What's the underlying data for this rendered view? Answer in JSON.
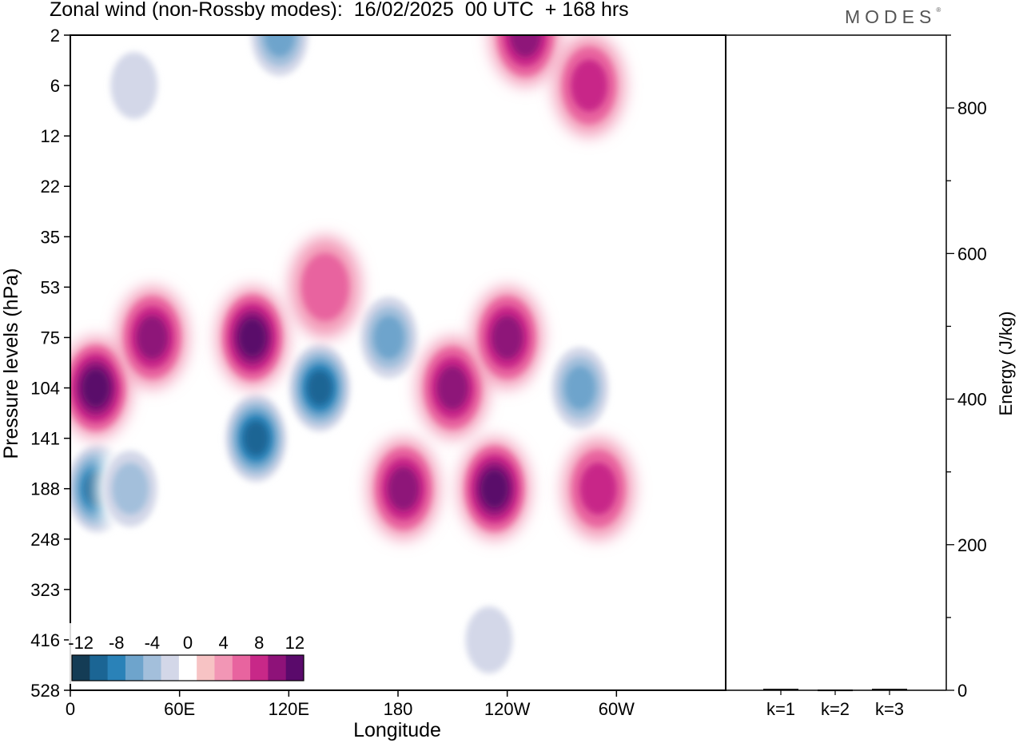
{
  "title": "Zonal wind (non-Rossby modes):  16/02/2025  00 UTC  + 168 hrs",
  "logo": "MODES",
  "chart_data": [
    {
      "type": "heatmap",
      "title": "Zonal wind (non-Rossby modes):  16/02/2025  00 UTC  + 168 hrs",
      "xlabel": "Longitude",
      "ylabel": "Pressure levels (hPa)",
      "x_ticks": [
        "0",
        "60E",
        "120E",
        "180",
        "120W",
        "60W"
      ],
      "x_tick_values": [
        0,
        60,
        120,
        180,
        240,
        300
      ],
      "xlim": [
        0,
        360
      ],
      "y_ticks": [
        "2",
        "6",
        "12",
        "22",
        "35",
        "53",
        "75",
        "104",
        "141",
        "188",
        "248",
        "323",
        "416",
        "528"
      ],
      "colorbar": {
        "labels": [
          "-12",
          "-8",
          "-4",
          "0",
          "4",
          "8",
          "12"
        ],
        "bounds": [
          -16,
          -14,
          -12,
          -10,
          -8,
          -6,
          -4,
          -2,
          2,
          4,
          6,
          8,
          10,
          12,
          14
        ],
        "colors": [
          "#143c55",
          "#1b6594",
          "#2a82b8",
          "#6ea4cc",
          "#a3bfdb",
          "#d3d7e8",
          "#ffffff",
          "#f7c3c4",
          "#f296b5",
          "#e8649f",
          "#c82888",
          "#8e1279",
          "#5a0a6b"
        ]
      },
      "features": [
        {
          "lon": 15,
          "level": "188",
          "value": -12
        },
        {
          "lon": 33,
          "level": "188",
          "value": -6
        },
        {
          "lon": 14,
          "level": "104",
          "value": 10
        },
        {
          "lon": 45,
          "level": "75",
          "value": 8
        },
        {
          "lon": 102,
          "level": "141",
          "value": -12
        },
        {
          "lon": 137,
          "level": "104",
          "value": -12
        },
        {
          "lon": 175,
          "level": "75",
          "value": -8
        },
        {
          "lon": 100,
          "level": "75",
          "value": 10
        },
        {
          "lon": 140,
          "level": "53",
          "value": 4
        },
        {
          "lon": 183,
          "level": "188",
          "value": 8
        },
        {
          "lon": 210,
          "level": "104",
          "value": 8
        },
        {
          "lon": 233,
          "level": "188",
          "value": 10
        },
        {
          "lon": 240,
          "level": "75",
          "value": 8
        },
        {
          "lon": 280,
          "level": "104",
          "value": -8
        },
        {
          "lon": 290,
          "level": "188",
          "value": 6
        },
        {
          "lon": 250,
          "level": "2",
          "value": 8
        },
        {
          "lon": 285,
          "level": "6",
          "value": 6
        },
        {
          "lon": 115,
          "level": "2",
          "value": -8
        },
        {
          "lon": 35,
          "level": "6",
          "value": -4
        },
        {
          "lon": 230,
          "level": "416",
          "value": -4
        }
      ]
    },
    {
      "type": "bar",
      "ylabel": "Energy (J/kg)",
      "categories": [
        "k=1",
        "k=2",
        "k=3"
      ],
      "values": [
        2,
        1,
        2
      ],
      "ylim": [
        0,
        900
      ],
      "y_ticks": [
        "0",
        "200",
        "400",
        "600",
        "800"
      ]
    }
  ]
}
